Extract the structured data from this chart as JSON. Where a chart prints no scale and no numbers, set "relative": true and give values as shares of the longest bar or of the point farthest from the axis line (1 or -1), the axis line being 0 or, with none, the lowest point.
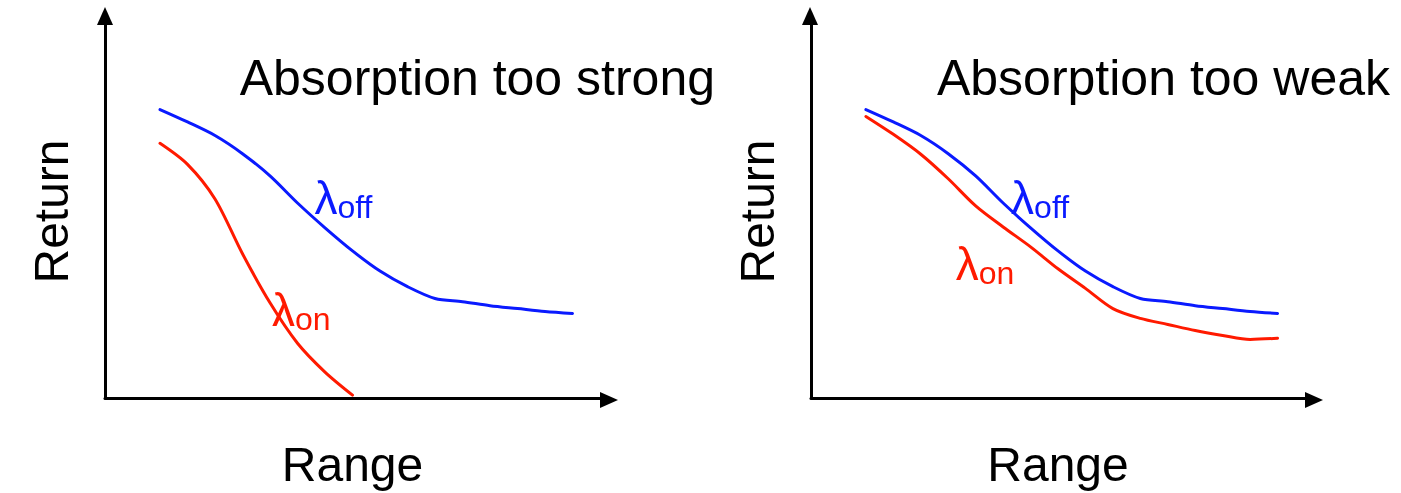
{
  "chart_data": [
    {
      "type": "line",
      "title": "Absorption too strong",
      "xlabel": "Range",
      "ylabel": "Return",
      "relative": true,
      "grid": false,
      "marker": "none",
      "categories": [
        null,
        null,
        null,
        null,
        null,
        null,
        null,
        null,
        null,
        null,
        null,
        null,
        null,
        null,
        null,
        null,
        null,
        null,
        null
      ],
      "series": [
        {
          "name": "λ$_{off}$",
          "color": "#0a1aff",
          "values": [
            null,
            null,
            1,
            0.957,
            0.91,
            0.847,
            0.77,
            0.676,
            0.59,
            0.51,
            0.44,
            0.386,
            0.345,
            0.334,
            0.32,
            0.31,
            0.3,
            0.293,
            null
          ]
        },
        {
          "name": "λ$_{on}$",
          "color": "#ff1a00",
          "values": [
            null,
            null,
            0.883,
            0.81,
            0.69,
            0.5,
            0.33,
            0.19,
            0.09,
            0.01,
            null,
            null,
            null,
            null,
            null,
            null,
            null,
            null,
            null
          ]
        }
      ]
    },
    {
      "type": "line",
      "title": "Absorption too weak",
      "xlabel": "Range",
      "ylabel": "Return",
      "relative": true,
      "grid": false,
      "marker": "none",
      "categories": [
        null,
        null,
        null,
        null,
        null,
        null,
        null,
        null,
        null,
        null,
        null,
        null,
        null,
        null,
        null,
        null,
        null,
        null,
        null
      ],
      "series": [
        {
          "name": "λ$_{off}$",
          "color": "#0a1aff",
          "values": [
            null,
            null,
            1,
            0.957,
            0.91,
            0.847,
            0.77,
            0.676,
            0.59,
            0.51,
            0.44,
            0.386,
            0.345,
            0.334,
            0.32,
            0.31,
            0.3,
            0.293,
            null
          ]
        },
        {
          "name": "λ$_{on}$",
          "color": "#ff1a00",
          "values": [
            null,
            null,
            0.976,
            0.914,
            0.845,
            0.76,
            0.666,
            0.593,
            0.524,
            0.448,
            0.38,
            0.31,
            0.276,
            0.255,
            0.234,
            0.217,
            0.203,
            0.207,
            null
          ]
        }
      ]
    }
  ]
}
